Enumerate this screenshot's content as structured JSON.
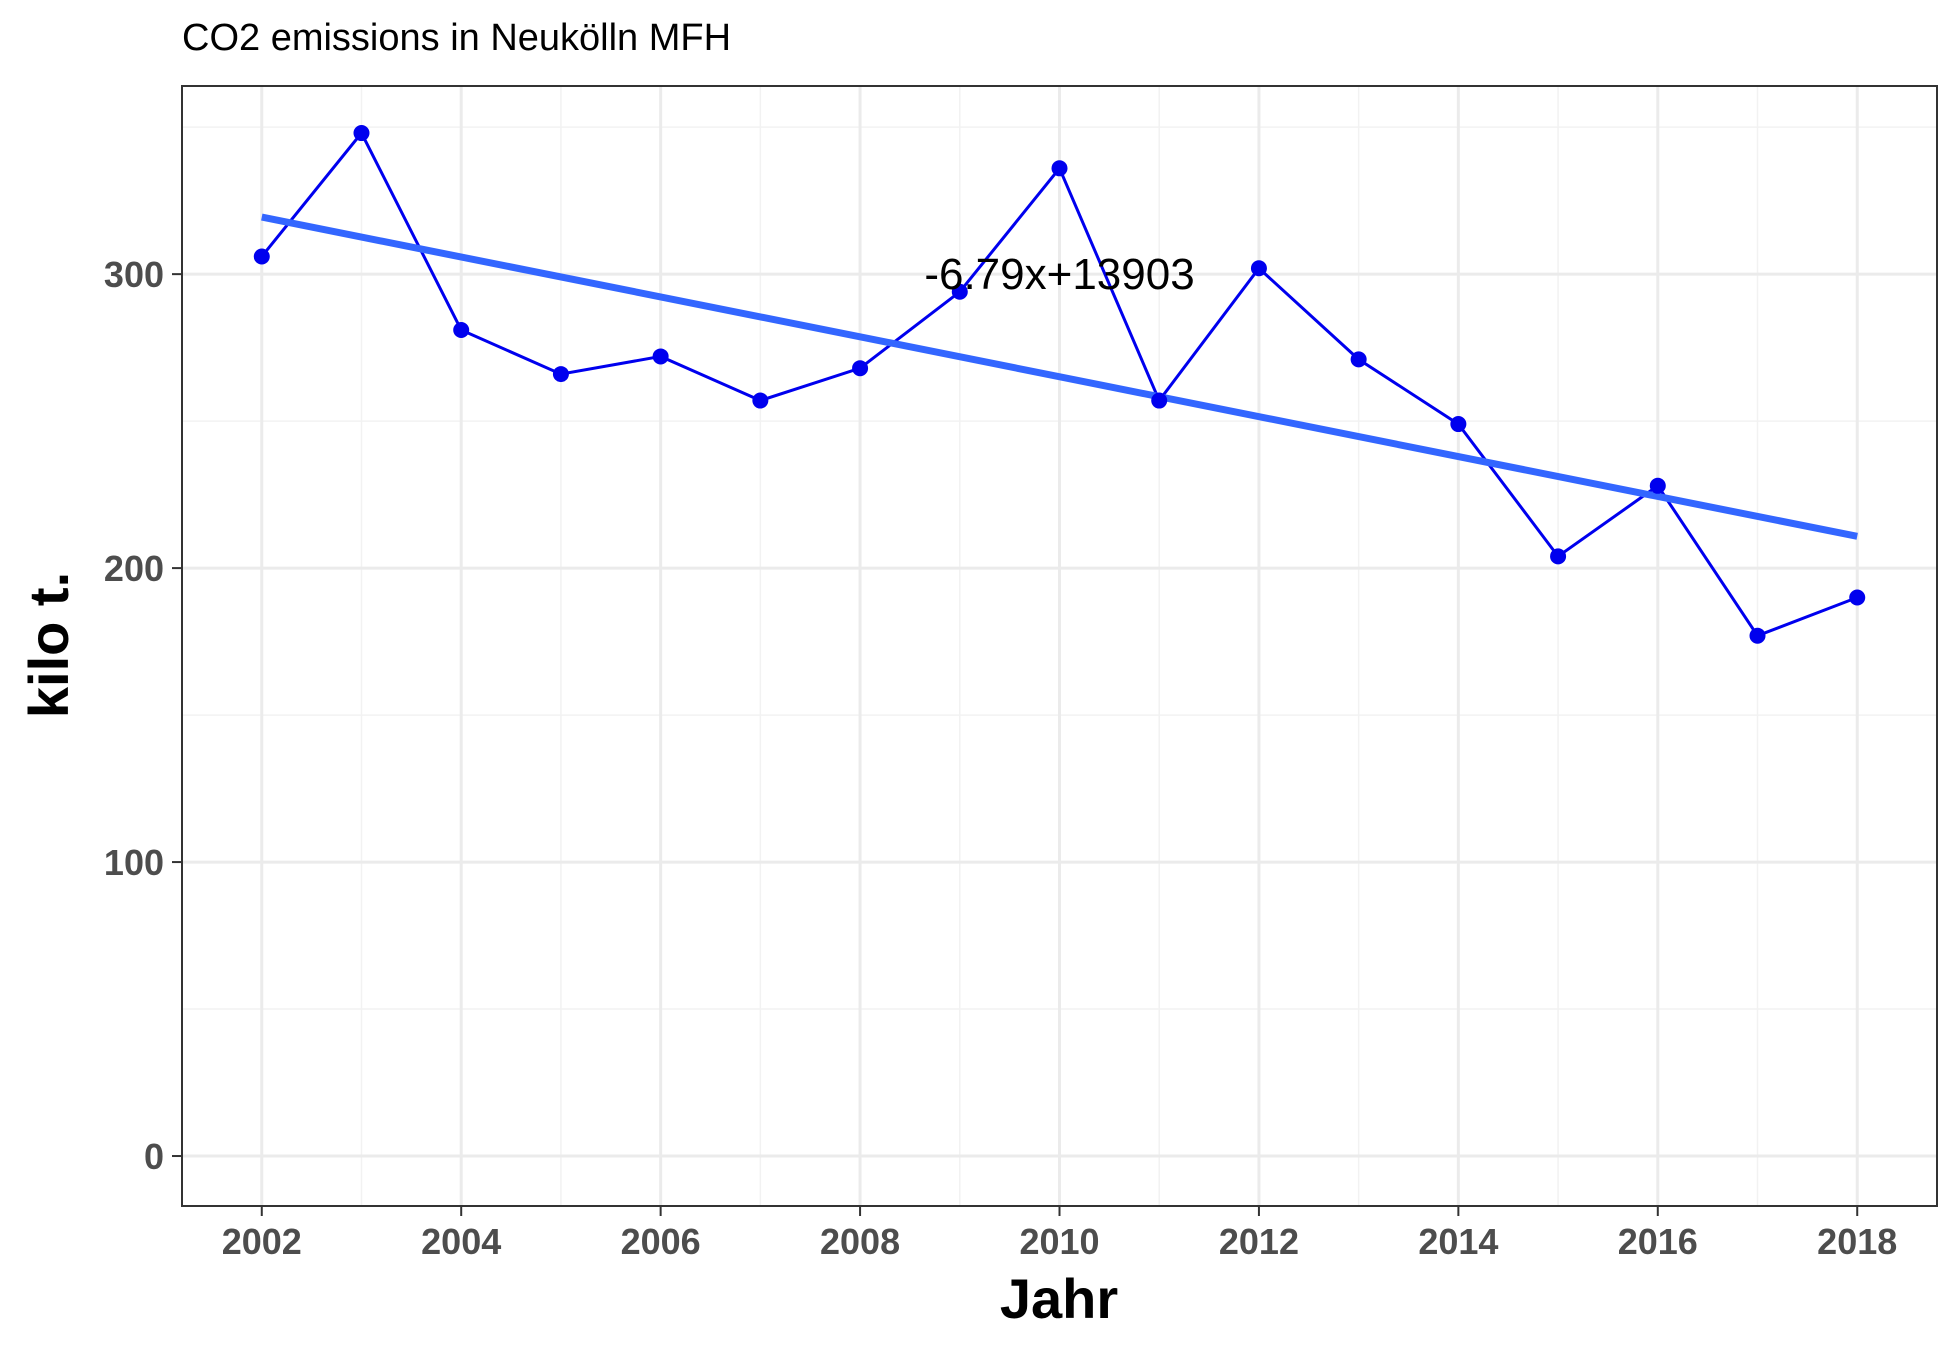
{
  "chart_data": {
    "type": "line",
    "title": "CO2 emissions in Neukölln MFH",
    "xlabel": "Jahr",
    "ylabel": "kilo t.",
    "x": [
      2002,
      2003,
      2004,
      2005,
      2006,
      2007,
      2008,
      2009,
      2010,
      2011,
      2012,
      2013,
      2014,
      2015,
      2016,
      2017,
      2018
    ],
    "series": [
      {
        "values": [
          306,
          348,
          281,
          266,
          272,
          257,
          268,
          294,
          336,
          257,
          302,
          271,
          249,
          204,
          228,
          177,
          190
        ],
        "color": "#0000ee"
      }
    ],
    "trendline": {
      "label": "-6.79x+13903",
      "x": [
        2002,
        2018
      ],
      "y": [
        319.4,
        210.8
      ],
      "color": "#3366ff"
    },
    "xlim": [
      2001.2,
      2018.8
    ],
    "ylim": [
      -17,
      364
    ],
    "xticks": [
      2002,
      2004,
      2006,
      2008,
      2010,
      2012,
      2014,
      2016,
      2018
    ],
    "yticks": [
      0,
      100,
      200,
      300
    ],
    "grid": true,
    "legend": "none"
  }
}
